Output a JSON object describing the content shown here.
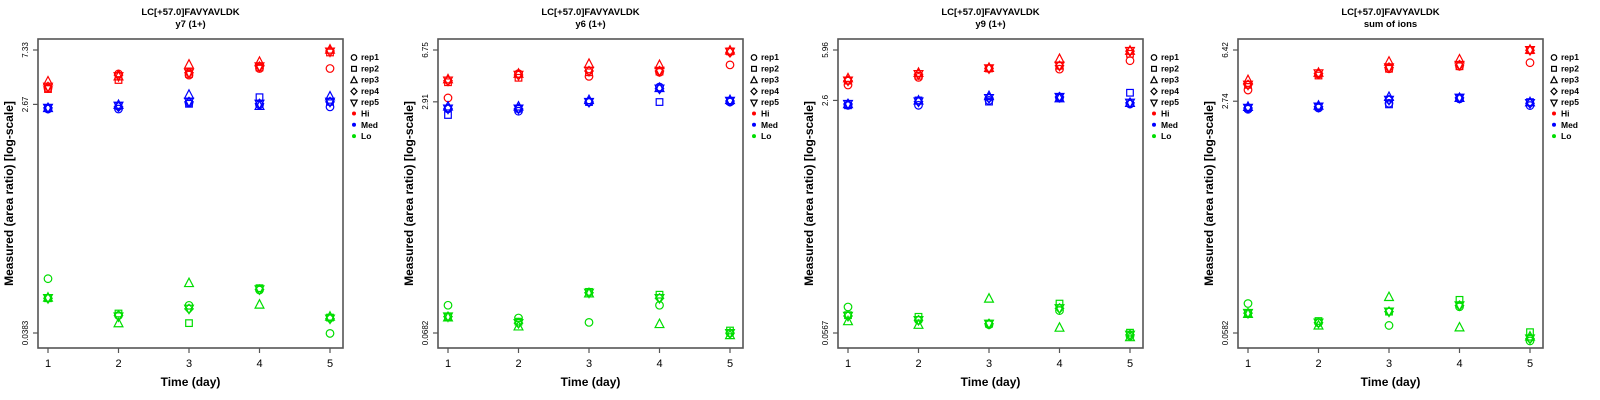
{
  "figure": {
    "background": "#ffffff",
    "axis_color": "#555555",
    "text_color": "#000000"
  },
  "legend": {
    "rep_items": [
      {
        "label": "rep1",
        "marker": "circle"
      },
      {
        "label": "rep2",
        "marker": "square"
      },
      {
        "label": "rep3",
        "marker": "triangle-up"
      },
      {
        "label": "rep4",
        "marker": "diamond"
      },
      {
        "label": "rep5",
        "marker": "triangle-down"
      }
    ],
    "level_items": [
      {
        "label": "Hi",
        "color": "#ff0000"
      },
      {
        "label": "Med",
        "color": "#0000ff"
      },
      {
        "label": "Lo",
        "color": "#00dd00"
      }
    ]
  },
  "chart_data": {
    "type": "scatter",
    "x": [
      1,
      2,
      3,
      4,
      5
    ],
    "xlabel": "Time (day)",
    "ylabel": "Measured (area ratio) [log-scale]",
    "y_scale": "log",
    "grid": false,
    "legend_position": "right",
    "colors": {
      "Hi": "#ff0000",
      "Med": "#0000ff",
      "Lo": "#00dd00"
    },
    "markers_by_rep": {
      "rep1": "circle",
      "rep2": "square",
      "rep3": "triangle-up",
      "rep4": "diamond",
      "rep5": "triangle-down"
    },
    "panels": [
      {
        "title": "LC[+57.0]FAVYAVLDK",
        "subtitle": "y7 (1+)",
        "y_ticks": [
          7.33,
          2.67,
          0.0383
        ],
        "y_tick_labels": [
          "7.33",
          "2.67",
          "0.0383"
        ],
        "series": {
          "Hi": {
            "rep1": [
              3.6,
              4.7,
              4.6,
              5.2,
              5.2
            ],
            "rep2": [
              3.55,
              4.2,
              4.7,
              5.3,
              7.0
            ],
            "rep3": [
              4.1,
              4.5,
              5.6,
              5.9,
              7.4
            ],
            "rep4": [
              3.7,
              4.6,
              4.8,
              5.4,
              7.2
            ],
            "rep5": [
              3.7,
              4.5,
              4.8,
              5.4,
              7.1
            ]
          },
          "Med": {
            "rep1": [
              2.45,
              2.45,
              2.75,
              2.65,
              2.55
            ],
            "rep2": [
              2.5,
              2.6,
              2.7,
              3.05,
              2.8
            ],
            "rep3": [
              2.5,
              2.65,
              3.2,
              2.6,
              3.1
            ],
            "rep4": [
              2.5,
              2.55,
              2.8,
              2.7,
              2.8
            ],
            "rep5": [
              2.5,
              2.6,
              2.8,
              2.7,
              2.8
            ]
          },
          "Lo": {
            "rep1": [
              0.105,
              0.053,
              0.064,
              0.085,
              0.038
            ],
            "rep2": [
              0.073,
              0.055,
              0.046,
              0.088,
              0.051
            ],
            "rep3": [
              0.074,
              0.046,
              0.097,
              0.065,
              0.052
            ],
            "rep4": [
              0.073,
              0.053,
              0.06,
              0.086,
              0.05
            ],
            "rep5": [
              0.073,
              0.052,
              0.06,
              0.086,
              0.05
            ]
          }
        }
      },
      {
        "title": "LC[+57.0]FAVYAVLDK",
        "subtitle": "y6 (1+)",
        "y_ticks": [
          6.75,
          2.91,
          0.0682
        ],
        "y_tick_labels": [
          "6.75",
          "2.91",
          "0.0682"
        ],
        "series": {
          "Hi": {
            "rep1": [
              3.1,
              4.6,
              4.4,
              4.7,
              5.3
            ],
            "rep2": [
              4.0,
              4.3,
              4.7,
              4.75,
              6.6
            ],
            "rep3": [
              4.2,
              4.6,
              5.4,
              5.3,
              6.7
            ],
            "rep4": [
              4.1,
              4.5,
              4.8,
              4.8,
              6.5
            ],
            "rep5": [
              4.1,
              4.5,
              4.8,
              4.8,
              6.55
            ]
          },
          "Med": {
            "rep1": [
              2.6,
              2.5,
              2.9,
              3.7,
              2.9
            ],
            "rep2": [
              2.35,
              2.6,
              2.9,
              2.9,
              2.95
            ],
            "rep3": [
              2.7,
              2.7,
              3.0,
              3.65,
              3.0
            ],
            "rep4": [
              2.6,
              2.6,
              2.9,
              3.6,
              2.95
            ],
            "rep5": [
              2.6,
              2.6,
              2.9,
              3.6,
              2.95
            ]
          },
          "Lo": {
            "rep1": [
              0.107,
              0.087,
              0.081,
              0.107,
              0.068
            ],
            "rep2": [
              0.089,
              0.082,
              0.133,
              0.127,
              0.071
            ],
            "rep3": [
              0.088,
              0.076,
              0.13,
              0.079,
              0.066
            ],
            "rep4": [
              0.089,
              0.08,
              0.131,
              0.12,
              0.068
            ],
            "rep5": [
              0.089,
              0.08,
              0.131,
              0.12,
              0.068
            ]
          }
        }
      },
      {
        "title": "LC[+57.0]FAVYAVLDK",
        "subtitle": "y9 (1+)",
        "y_ticks": [
          5.96,
          2.6,
          0.0567
        ],
        "y_tick_labels": [
          "5.96",
          "2.6",
          "0.0567"
        ],
        "series": {
          "Hi": {
            "rep1": [
              3.35,
              3.8,
              4.4,
              4.35,
              5.0
            ],
            "rep2": [
              3.6,
              3.9,
              4.4,
              4.6,
              5.6
            ],
            "rep3": [
              3.75,
              4.1,
              4.45,
              5.15,
              5.9
            ],
            "rep4": [
              3.6,
              4.0,
              4.4,
              4.6,
              5.85
            ],
            "rep5": [
              3.6,
              4.0,
              4.4,
              4.6,
              5.85
            ]
          },
          "Med": {
            "rep1": [
              2.4,
              2.4,
              2.6,
              2.7,
              2.45
            ],
            "rep2": [
              2.4,
              2.6,
              2.55,
              2.75,
              2.95
            ],
            "rep3": [
              2.45,
              2.6,
              2.8,
              2.7,
              2.5
            ],
            "rep4": [
              2.45,
              2.55,
              2.7,
              2.75,
              2.5
            ],
            "rep5": [
              2.45,
              2.55,
              2.7,
              2.75,
              2.5
            ]
          },
          "Lo": {
            "rep1": [
              0.087,
              0.07,
              0.065,
              0.082,
              0.054
            ],
            "rep2": [
              0.076,
              0.074,
              0.066,
              0.092,
              0.057
            ],
            "rep3": [
              0.069,
              0.065,
              0.1,
              0.062,
              0.053
            ],
            "rep4": [
              0.075,
              0.07,
              0.066,
              0.085,
              0.055
            ],
            "rep5": [
              0.075,
              0.07,
              0.066,
              0.085,
              0.055
            ]
          }
        }
      },
      {
        "title": "LC[+57.0]FAVYAVLDK",
        "subtitle": "sum of ions",
        "y_ticks": [
          6.42,
          2.74,
          0.0582
        ],
        "y_tick_labels": [
          "6.42",
          "2.74",
          "0.0582"
        ],
        "series": {
          "Hi": {
            "rep1": [
              3.3,
              4.3,
              4.7,
              4.9,
              5.2
            ],
            "rep2": [
              3.6,
              4.2,
              4.7,
              4.9,
              6.4
            ],
            "rep3": [
              3.9,
              4.4,
              5.3,
              5.5,
              6.45
            ],
            "rep4": [
              3.6,
              4.35,
              4.8,
              5.0,
              6.4
            ],
            "rep5": [
              3.6,
              4.35,
              4.8,
              5.0,
              6.4
            ]
          },
          "Med": {
            "rep1": [
              2.4,
              2.45,
              2.65,
              2.85,
              2.55
            ],
            "rep2": [
              2.45,
              2.5,
              2.6,
              2.9,
              2.7
            ],
            "rep3": [
              2.5,
              2.55,
              2.95,
              2.9,
              2.7
            ],
            "rep4": [
              2.45,
              2.5,
              2.8,
              2.9,
              2.65
            ],
            "rep5": [
              2.45,
              2.5,
              2.8,
              2.9,
              2.65
            ]
          },
          "Lo": {
            "rep1": [
              0.095,
              0.069,
              0.066,
              0.09,
              0.051
            ],
            "rep2": [
              0.081,
              0.071,
              0.083,
              0.101,
              0.059
            ],
            "rep3": [
              0.08,
              0.066,
              0.106,
              0.064,
              0.055
            ],
            "rep4": [
              0.081,
              0.069,
              0.083,
              0.092,
              0.053
            ],
            "rep5": [
              0.081,
              0.069,
              0.083,
              0.092,
              0.053
            ]
          }
        }
      }
    ]
  }
}
